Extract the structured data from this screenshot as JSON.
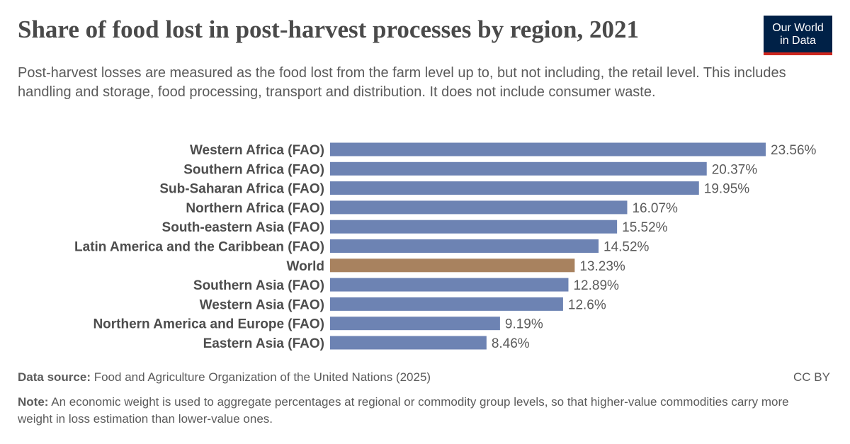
{
  "header": {
    "title": "Share of food lost in post-harvest processes by region, 2021",
    "subtitle": "Post-harvest losses are measured as the food lost from the farm level up to, but not including, the retail level. This includes handling and storage, food processing, transport and distribution. It does not include consumer waste.",
    "logo_line1": "Our World",
    "logo_line2": "in Data"
  },
  "footer": {
    "source_label": "Data source:",
    "source_text": "Food and Agriculture Organization of the United Nations (2025)",
    "license": "CC BY",
    "note_label": "Note:",
    "note_text": "An economic weight is used to aggregate percentages at regional or commodity group levels, so that higher-value commodities carry more weight in loss estimation than lower-value ones."
  },
  "colors": {
    "bar": "#6d83b3",
    "highlight": "#a8825f",
    "logo_bg": "#002147",
    "logo_accent": "#ce261e"
  },
  "chart_data": {
    "type": "bar",
    "orientation": "horizontal",
    "categories": [
      "Western Africa (FAO)",
      "Southern Africa (FAO)",
      "Sub-Saharan Africa (FAO)",
      "Northern Africa (FAO)",
      "South-eastern Asia (FAO)",
      "Latin America and the Caribbean (FAO)",
      "World",
      "Southern Asia (FAO)",
      "Western Asia (FAO)",
      "Northern America and Europe (FAO)",
      "Eastern Asia (FAO)"
    ],
    "values": [
      23.56,
      20.37,
      19.95,
      16.07,
      15.52,
      14.52,
      13.23,
      12.89,
      12.6,
      9.19,
      8.46
    ],
    "value_labels": [
      "23.56%",
      "20.37%",
      "19.95%",
      "16.07%",
      "15.52%",
      "14.52%",
      "13.23%",
      "12.89%",
      "12.6%",
      "9.19%",
      "8.46%"
    ],
    "highlight_category": "World",
    "unit": "%",
    "xlim": [
      0,
      23.56
    ],
    "grid": false,
    "legend": "none"
  }
}
